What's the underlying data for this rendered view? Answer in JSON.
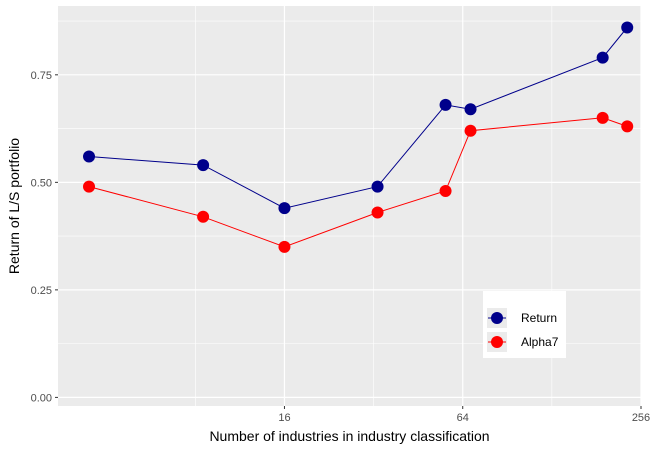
{
  "chart_data": {
    "type": "line",
    "xlabel": "Number of industries in industry classification",
    "ylabel": "Return of L/S portfolio",
    "x_scale": "log2",
    "xlim": [
      2.75,
      256
    ],
    "ylim": [
      -0.02,
      0.91
    ],
    "x_ticks": [
      16,
      64,
      256
    ],
    "x_tick_labels": [
      "16",
      "64",
      "256"
    ],
    "y_ticks": [
      0,
      0.25,
      0.5,
      0.75
    ],
    "y_tick_labels": [
      "0.00",
      "0.25",
      "0.50",
      "0.75"
    ],
    "grid": true,
    "legend_position": "bottom-right, inside",
    "series": [
      {
        "name": "Return",
        "color": "#00008b",
        "x": [
          3.5,
          8.5,
          16,
          33,
          56,
          68,
          190,
          230
        ],
        "y": [
          0.56,
          0.54,
          0.44,
          0.49,
          0.68,
          0.67,
          0.79,
          0.86
        ]
      },
      {
        "name": "Alpha7",
        "color": "#ff0000",
        "x": [
          3.5,
          8.5,
          16,
          33,
          56,
          68,
          190,
          230
        ],
        "y": [
          0.49,
          0.42,
          0.35,
          0.43,
          0.48,
          0.62,
          0.65,
          0.63
        ]
      }
    ]
  }
}
